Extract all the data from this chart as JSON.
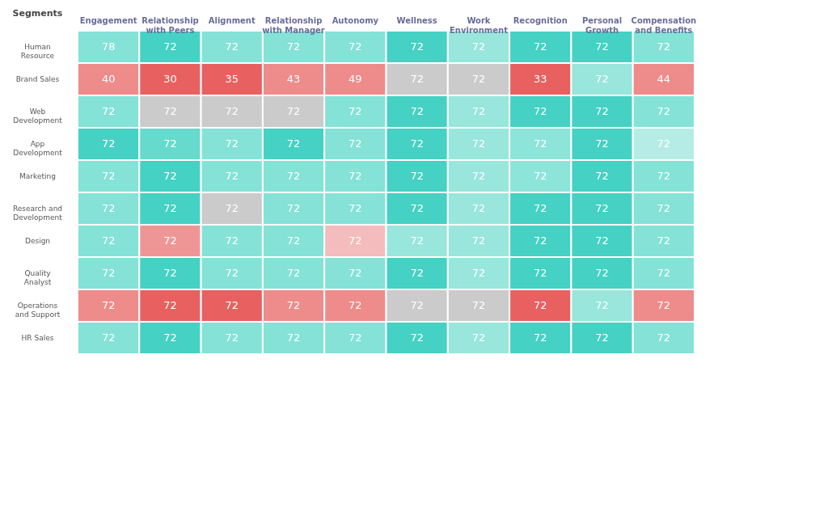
{
  "chart_data": {
    "type": "heatmap",
    "ylabel": "Segments",
    "categories": [
      "Engagement",
      "Relationship with Peers",
      "Alignment",
      "Relationship with Manager",
      "Autonomy",
      "Wellness",
      "Work Environment",
      "Recognition",
      "Personal Growth",
      "Compensation and Benefits"
    ],
    "y_categories": [
      "Human Resource",
      "Brand Sales",
      "Web Development",
      "App Development",
      "Marketing",
      "Research and Development",
      "Design",
      "Quality Analyst",
      "Operations and Support",
      "HR Sales"
    ],
    "cells": [
      [
        78,
        72,
        72,
        72,
        72,
        72,
        72,
        72,
        72,
        72
      ],
      [
        40,
        30,
        35,
        43,
        49,
        72,
        72,
        33,
        72,
        44
      ],
      [
        72,
        72,
        72,
        72,
        72,
        72,
        72,
        72,
        72,
        72
      ],
      [
        72,
        72,
        72,
        72,
        72,
        72,
        72,
        72,
        72,
        72
      ],
      [
        72,
        72,
        72,
        72,
        72,
        72,
        72,
        72,
        72,
        72
      ],
      [
        72,
        72,
        72,
        72,
        72,
        72,
        72,
        72,
        72,
        72
      ],
      [
        72,
        72,
        72,
        72,
        72,
        72,
        72,
        72,
        72,
        72
      ],
      [
        72,
        72,
        72,
        72,
        72,
        72,
        72,
        72,
        72,
        72
      ],
      [
        72,
        72,
        72,
        72,
        72,
        72,
        72,
        72,
        72,
        72
      ],
      [
        72,
        72,
        72,
        72,
        72,
        72,
        72,
        72,
        72,
        72
      ]
    ],
    "colors": [
      [
        "#84e2d7",
        "#45d1c3",
        "#84e2d7",
        "#84e2d7",
        "#84e2d7",
        "#45d1c3",
        "#98e6dc",
        "#45d1c3",
        "#45d1c3",
        "#84e2d7"
      ],
      [
        "#ee8b8b",
        "#e86060",
        "#e86060",
        "#ee8b8b",
        "#ee8b8b",
        "#cbcbcb",
        "#cbcbcb",
        "#e86060",
        "#98e6dc",
        "#ee8b8b"
      ],
      [
        "#84e2d7",
        "#cbcbcb",
        "#cbcbcb",
        "#cbcbcb",
        "#84e2d7",
        "#45d1c3",
        "#98e6dc",
        "#45d1c3",
        "#45d1c3",
        "#84e2d7"
      ],
      [
        "#45d1c3",
        "#66dacc",
        "#84e2d7",
        "#45d1c3",
        "#84e2d7",
        "#45d1c3",
        "#98e6dc",
        "#8de4d9",
        "#45d1c3",
        "#b5ede6"
      ],
      [
        "#84e2d7",
        "#45d1c3",
        "#84e2d7",
        "#84e2d7",
        "#84e2d7",
        "#45d1c3",
        "#98e6dc",
        "#8de4d9",
        "#45d1c3",
        "#84e2d7"
      ],
      [
        "#84e2d7",
        "#45d1c3",
        "#cbcbcb",
        "#84e2d7",
        "#84e2d7",
        "#45d1c3",
        "#98e6dc",
        "#45d1c3",
        "#45d1c3",
        "#84e2d7"
      ],
      [
        "#84e2d7",
        "#ee9696",
        "#84e2d7",
        "#84e2d7",
        "#f4bcbc",
        "#98e6dc",
        "#98e6dc",
        "#45d1c3",
        "#45d1c3",
        "#84e2d7"
      ],
      [
        "#84e2d7",
        "#45d1c3",
        "#84e2d7",
        "#84e2d7",
        "#84e2d7",
        "#45d1c3",
        "#98e6dc",
        "#45d1c3",
        "#45d1c3",
        "#84e2d7"
      ],
      [
        "#ee8b8b",
        "#e86060",
        "#e86060",
        "#ee8b8b",
        "#ee8b8b",
        "#cbcbcb",
        "#cbcbcb",
        "#e86060",
        "#98e6dc",
        "#ee8b8b"
      ],
      [
        "#84e2d7",
        "#45d1c3",
        "#84e2d7",
        "#84e2d7",
        "#84e2d7",
        "#45d1c3",
        "#98e6dc",
        "#45d1c3",
        "#45d1c3",
        "#84e2d7"
      ]
    ],
    "data_labels": true
  }
}
